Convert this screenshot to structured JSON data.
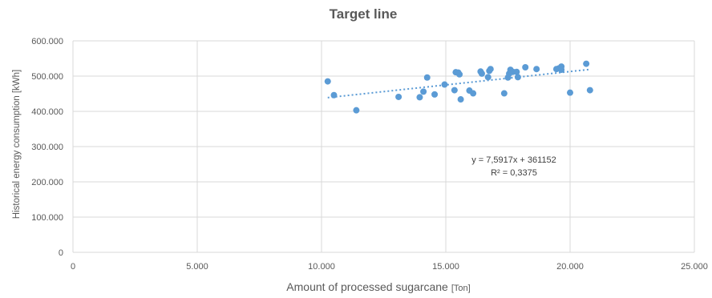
{
  "chart_data": {
    "type": "scatter",
    "title": "Target line",
    "xlabel": "Amount of processed sugarcane",
    "xlabel_unit": "[Ton]",
    "ylabel": "Historical energy consumption",
    "ylabel_unit": "[kWh]",
    "xlim": [
      0,
      25000
    ],
    "ylim": [
      0,
      600000
    ],
    "x_ticks": [
      0,
      5000,
      10000,
      15000,
      20000,
      25000
    ],
    "x_tick_labels": [
      "0",
      "5.000",
      "10.000",
      "15.000",
      "20.000",
      "25.000"
    ],
    "y_ticks": [
      0,
      100000,
      200000,
      300000,
      400000,
      500000,
      600000
    ],
    "y_tick_labels": [
      "0",
      "100.000",
      "200.000",
      "300.000",
      "400.000",
      "500.000",
      "600.000"
    ],
    "grid": true,
    "legend": "none",
    "colors": {
      "points": "#5b9bd5",
      "trendline": "#5b9bd5",
      "grid": "#d9d9d9",
      "text": "#595959"
    },
    "points": [
      [
        10250,
        485000
      ],
      [
        10500,
        446000
      ],
      [
        11400,
        403000
      ],
      [
        13100,
        441000
      ],
      [
        13950,
        440000
      ],
      [
        14100,
        456000
      ],
      [
        14250,
        496000
      ],
      [
        14550,
        448000
      ],
      [
        14950,
        476000
      ],
      [
        15350,
        460000
      ],
      [
        15400,
        511000
      ],
      [
        15500,
        510000
      ],
      [
        15550,
        505000
      ],
      [
        15600,
        434000
      ],
      [
        15950,
        459000
      ],
      [
        16100,
        451000
      ],
      [
        16400,
        513000
      ],
      [
        16450,
        507000
      ],
      [
        16700,
        497000
      ],
      [
        16750,
        515000
      ],
      [
        16800,
        520000
      ],
      [
        17350,
        451000
      ],
      [
        17500,
        496000
      ],
      [
        17550,
        507000
      ],
      [
        17600,
        518000
      ],
      [
        17700,
        512000
      ],
      [
        17850,
        512000
      ],
      [
        17900,
        497000
      ],
      [
        18200,
        525000
      ],
      [
        18650,
        520000
      ],
      [
        19450,
        520000
      ],
      [
        19550,
        522000
      ],
      [
        19650,
        527000
      ],
      [
        19650,
        518000
      ],
      [
        20000,
        453000
      ],
      [
        20650,
        535000
      ],
      [
        20800,
        460000
      ]
    ],
    "trendline": {
      "type": "linear",
      "slope": 7.5917,
      "intercept": 361152,
      "x_range": [
        10250,
        20800
      ],
      "equation_label": "y = 7,5917x + 361152",
      "r2_label": "R² = 0,3375"
    }
  }
}
